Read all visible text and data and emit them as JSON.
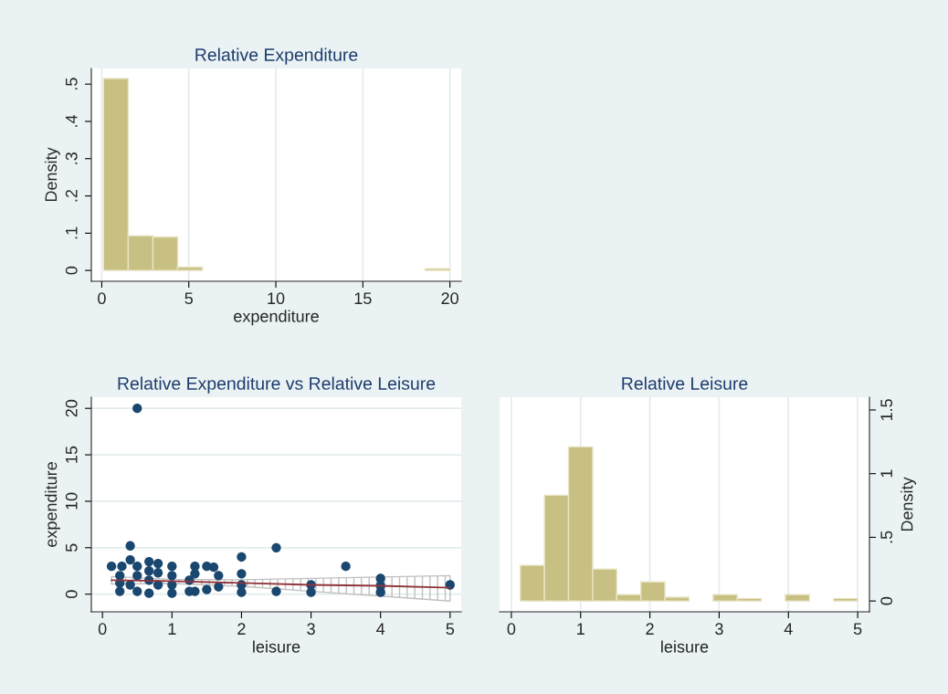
{
  "chart_data": [
    {
      "type": "histogram",
      "title": "Relative Expenditure",
      "xlabel": "expenditure",
      "ylabel": "Density",
      "color": "#c8bf82",
      "bins": [
        0.1,
        1.52,
        2.94,
        4.36,
        5.79,
        7.21,
        8.63,
        10.05,
        11.47,
        12.89,
        14.31,
        15.74,
        17.16,
        18.58,
        20.0
      ],
      "values": [
        0.515,
        0.093,
        0.09,
        0.009,
        null,
        null,
        null,
        null,
        null,
        null,
        null,
        null,
        null,
        0.005
      ],
      "xlim": [
        -0.6,
        20.65
      ],
      "ylim": [
        -0.029,
        0.542
      ],
      "xticks": [
        0,
        5,
        10,
        15,
        20
      ],
      "yticks": [
        0,
        {
          "value": 0.1,
          "label": ".1"
        },
        {
          "value": 0.2,
          "label": ".2"
        },
        {
          "value": 0.3,
          "label": ".3"
        },
        {
          "value": 0.4,
          "label": ".4"
        },
        {
          "value": 0.5,
          "label": ".5"
        }
      ],
      "grid": "x"
    },
    {
      "type": "scatter",
      "title": "Relative Expenditure vs Relative Leisure",
      "xlabel": "leisure",
      "ylabel": "expenditure",
      "series": [
        {
          "type": "scatter",
          "color": "#1a476f",
          "marker": "circle",
          "x": [
            0.13,
            0.28,
            0.5,
            0.4,
            0.4,
            0.5,
            0.25,
            0.25,
            0.25,
            0.4,
            0.5,
            0.5,
            0.67,
            0.67,
            0.67,
            0.67,
            0.8,
            0.8,
            0.8,
            1,
            1,
            1,
            1,
            1.25,
            1.25,
            1.33,
            1.33,
            1.33,
            1.5,
            1.5,
            1.6,
            1.67,
            1.67,
            2,
            2,
            2,
            2,
            2.5,
            2.5,
            3,
            3,
            3.5,
            4,
            4,
            4,
            5
          ],
          "values": [
            3,
            3,
            3,
            3.7,
            5.2,
            20,
            2,
            0.3,
            1.2,
            1,
            0.3,
            2,
            3.5,
            2.5,
            0.1,
            1.5,
            3.3,
            2.3,
            1,
            3,
            2,
            1,
            0.1,
            1.5,
            0.3,
            3,
            2.2,
            0.3,
            3,
            0.5,
            2.9,
            2,
            0.8,
            4,
            2.2,
            1,
            0.2,
            5,
            0.3,
            1,
            0.2,
            3,
            1.7,
            0.9,
            0.2,
            1
          ]
        },
        {
          "type": "line",
          "color": "#90353b",
          "line_style": "solid",
          "x": [
            0.13,
            1,
            2,
            3,
            4,
            5
          ],
          "values": [
            1.5,
            1.4,
            1.2,
            1.0,
            0.9,
            0.7
          ],
          "lower": [
            1.1,
            1.15,
            0.85,
            0.3,
            -0.2,
            -0.75
          ],
          "upper": [
            1.9,
            1.6,
            1.55,
            1.7,
            1.85,
            2.0
          ]
        }
      ],
      "xlim": [
        -0.16,
        5.16
      ],
      "ylim": [
        -1.9,
        21.2
      ],
      "xticks": [
        0,
        1,
        2,
        3,
        4,
        5
      ],
      "yticks": [
        0,
        5,
        10,
        15,
        20
      ],
      "grid": "y"
    },
    {
      "type": "histogram",
      "title": "Relative Leisure",
      "xlabel": "leisure",
      "y2label": "Density",
      "bins": [
        0.13,
        0.478,
        0.826,
        1.174,
        1.521,
        1.869,
        2.217,
        2.565,
        2.913,
        3.261,
        3.609,
        3.956,
        4.304,
        4.652,
        5.0
      ],
      "series": [
        {
          "color": "#c8bf82",
          "axis": "y2",
          "values": [
            0.28,
            0.83,
            1.21,
            0.25,
            0.05,
            0.15,
            0.03,
            null,
            0.05,
            0.02,
            null,
            0.05,
            null,
            0.02
          ]
        }
      ],
      "xlim": [
        -0.17,
        5.17
      ],
      "y2lim": [
        -0.085,
        1.6
      ],
      "xticks": [
        0,
        1,
        2,
        3,
        4,
        5
      ],
      "y2ticks": [
        0,
        {
          "value": 0.5,
          "label": ".5"
        },
        1,
        1.5
      ],
      "grid": "x"
    }
  ]
}
